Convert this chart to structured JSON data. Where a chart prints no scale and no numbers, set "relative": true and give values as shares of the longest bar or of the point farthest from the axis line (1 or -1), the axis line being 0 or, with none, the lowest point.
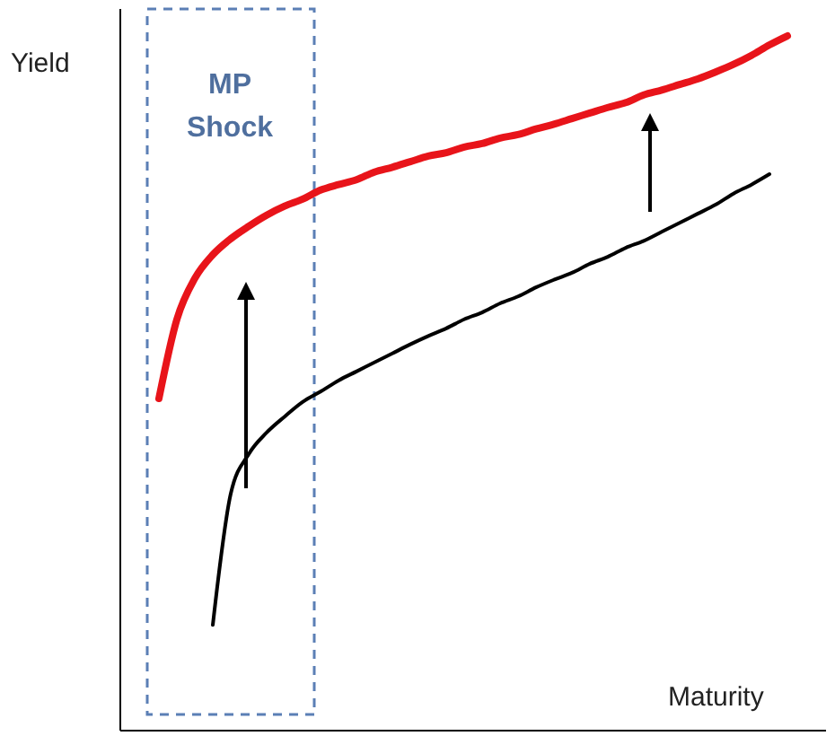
{
  "chart_data": {
    "type": "line",
    "relative": true,
    "xlabel": "Maturity",
    "ylabel": "Yield",
    "marker": "none",
    "annotations": [
      "MP Shock"
    ],
    "categories": [
      null,
      null,
      null,
      null,
      null,
      null,
      null,
      null,
      null,
      null,
      null,
      null,
      null,
      null,
      null,
      null,
      null,
      null,
      null,
      null,
      null,
      null,
      null,
      null,
      null,
      null,
      null,
      null,
      null,
      null,
      null,
      null,
      null,
      null,
      null,
      null
    ],
    "series": [
      {
        "color": "#e8141a",
        "values": [
          0.478,
          0.592,
          0.651,
          0.685,
          0.708,
          0.726,
          0.742,
          0.755,
          0.765,
          0.778,
          0.786,
          0.793,
          0.804,
          0.811,
          0.819,
          0.827,
          0.832,
          0.84,
          0.845,
          0.853,
          0.858,
          0.866,
          0.873,
          0.881,
          0.889,
          0.897,
          0.904,
          0.915,
          0.922,
          0.93,
          0.938,
          0.948,
          0.959,
          0.972,
          0.987,
          1
        ]
      },
      {
        "color": "#000000",
        "values": [
          null,
          null,
          null,
          0.152,
          0.341,
          0.398,
          0.429,
          0.452,
          0.473,
          0.488,
          0.504,
          0.517,
          0.53,
          0.543,
          0.556,
          0.568,
          0.579,
          0.592,
          0.602,
          0.615,
          0.625,
          0.638,
          0.649,
          0.659,
          0.672,
          0.682,
          0.695,
          0.705,
          0.718,
          0.731,
          0.744,
          0.757,
          0.773,
          0.786,
          0.801,
          null
        ]
      }
    ]
  }
}
